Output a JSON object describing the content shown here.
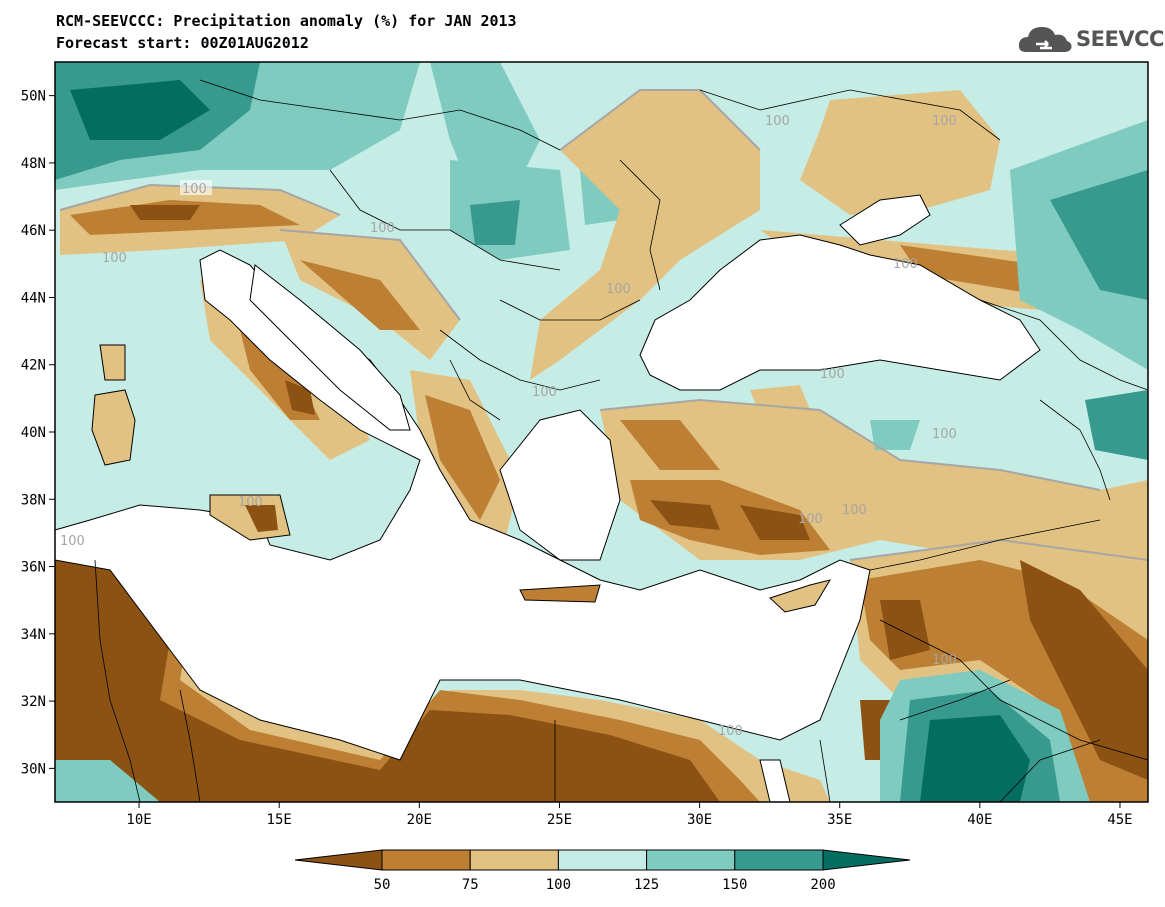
{
  "header": {
    "title": "RCM-SEEVCCC: Precipitation anomaly (%) for JAN 2013",
    "subtitle": "Forecast start: 00Z01AUG2012",
    "logo_text": "SEEVCCC"
  },
  "map": {
    "lon_range": [
      7,
      46
    ],
    "lat_range": [
      29,
      51
    ],
    "lat_ticks": [
      "50N",
      "48N",
      "46N",
      "44N",
      "42N",
      "40N",
      "38N",
      "36N",
      "34N",
      "32N",
      "30N"
    ],
    "lon_ticks": [
      "10E",
      "15E",
      "20E",
      "25E",
      "30E",
      "35E",
      "40E",
      "45E"
    ],
    "contour_label": "100",
    "legend": {
      "levels": [
        "50",
        "75",
        "100",
        "125",
        "150",
        "200"
      ],
      "colors": [
        "#8c5214",
        "#bd7f33",
        "#e2c282",
        "#c6ece6",
        "#7fcbc0",
        "#389a8f",
        "#046d61"
      ]
    }
  }
}
